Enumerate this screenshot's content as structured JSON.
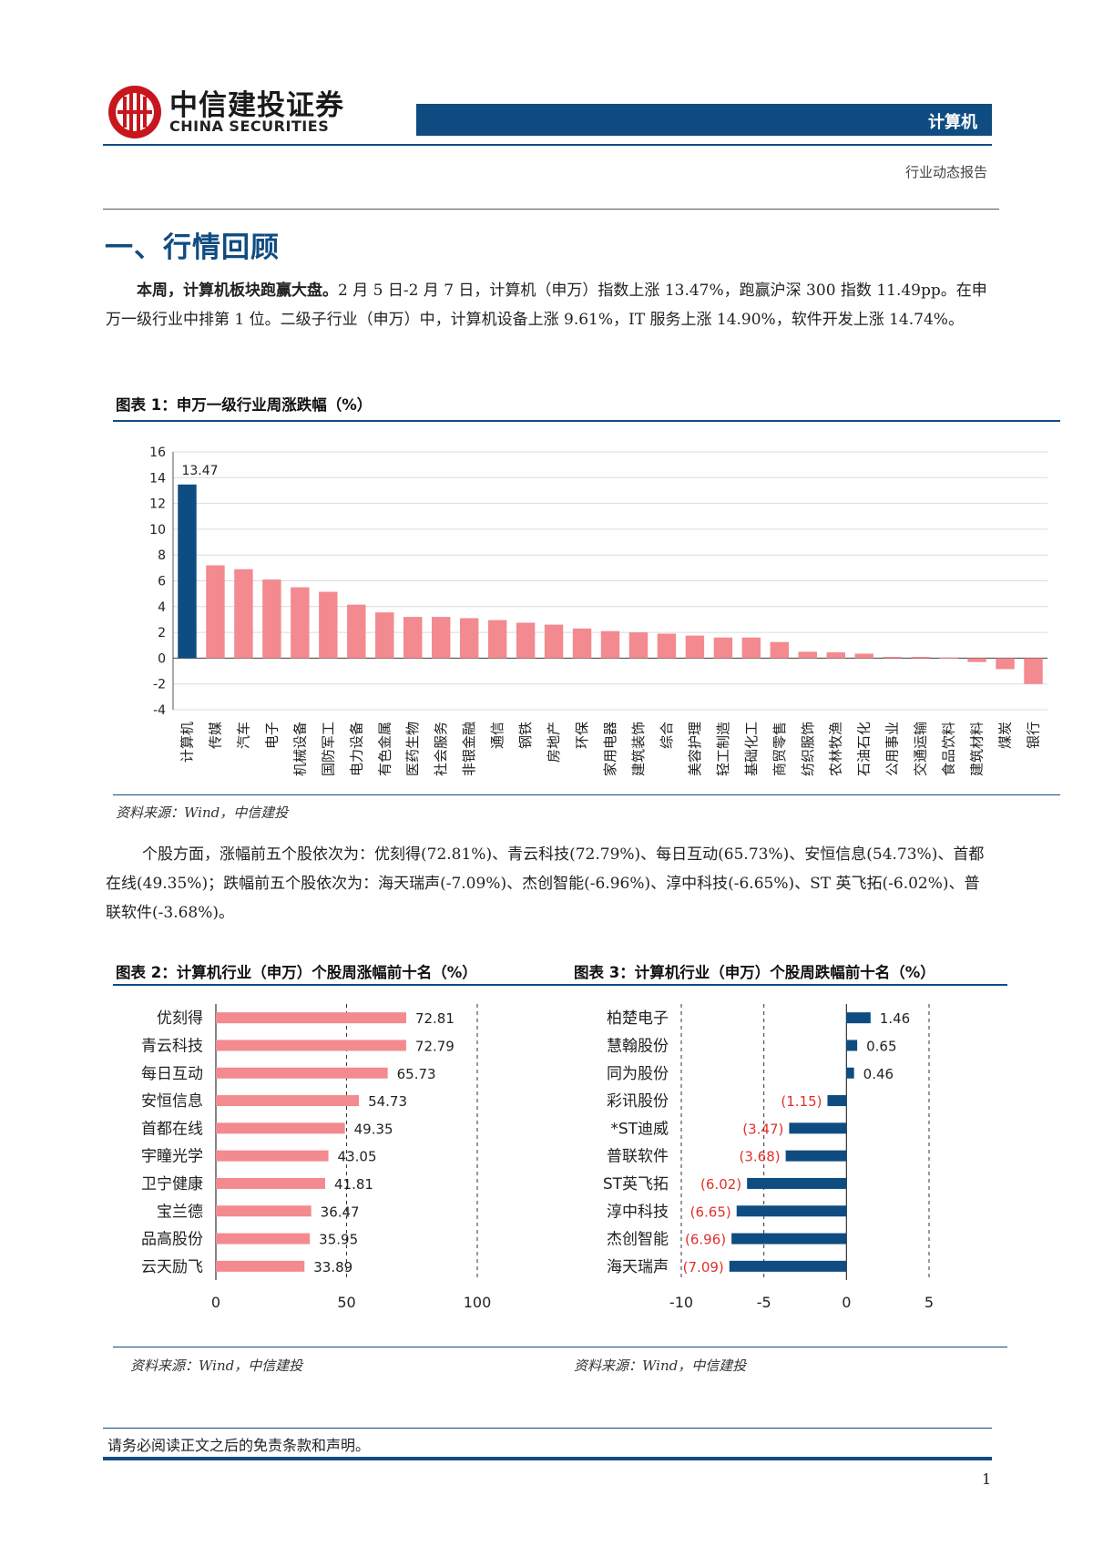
{
  "header": {
    "brand_cn": "中信建投证券",
    "brand_en": "CHINA SECURITIES",
    "section_tag": "计算机",
    "report_type": "行业动态报告"
  },
  "section": {
    "title": "一、行情回顾"
  },
  "para1": {
    "lead": "本周，计算机板块跑赢大盘。",
    "text": "2 月 5 日-2 月 7 日，计算机（申万）指数上涨 13.47%，跑赢沪深 300 指数 11.49pp。在申万一级行业中排第 1 位。二级子行业（申万）中，计算机设备上涨 9.61%，IT 服务上涨 14.90%，软件开发上涨 14.74%。"
  },
  "para2": {
    "text": "个股方面，涨幅前五个股依次为：优刻得(72.81%)、青云科技(72.79%)、每日互动(65.73%)、安恒信息(54.73%)、首都在线(49.35%)；跌幅前五个股依次为：海天瑞声(-7.09%)、杰创智能(-6.96%)、淳中科技(-6.65%)、ST 英飞拓(-6.02%)、普联软件(-3.68%)。"
  },
  "figures": {
    "fig1_title": "图表 1：申万一级行业周涨跌幅（%）",
    "fig2_title": "图表 2：计算机行业（申万）个股周涨幅前十名（%）",
    "fig3_title": "图表 3：计算机行业（申万）个股周跌幅前十名（%）",
    "source": "资料来源：Wind，中信建投"
  },
  "colors": {
    "brand": "#0f4c81",
    "bar_pink": "#f28a8f",
    "neg_label": "#e0312b"
  },
  "chart_data": [
    {
      "type": "bar",
      "categories": [
        "计算机",
        "传媒",
        "汽车",
        "电子",
        "机械设备",
        "国防军工",
        "电力设备",
        "有色金属",
        "医药生物",
        "社会服务",
        "非银金融",
        "通信",
        "钢铁",
        "房地产",
        "环保",
        "家用电器",
        "建筑装饰",
        "综合",
        "美容护理",
        "轻工制造",
        "基础化工",
        "商贸零售",
        "纺织服饰",
        "农林牧渔",
        "石油石化",
        "公用事业",
        "交通运输",
        "食品饮料",
        "建筑材料",
        "煤炭",
        "银行"
      ],
      "values": [
        13.47,
        7.2,
        6.9,
        6.1,
        5.5,
        5.15,
        4.15,
        3.55,
        3.2,
        3.2,
        3.1,
        2.95,
        2.75,
        2.6,
        2.3,
        2.1,
        2.0,
        1.9,
        1.75,
        1.6,
        1.6,
        1.25,
        0.5,
        0.45,
        0.35,
        0.1,
        0.1,
        0.05,
        -0.3,
        -0.85,
        -2.0
      ],
      "data_labels": [
        "13.47"
      ],
      "highlight_index": 0,
      "ylim": [
        -4,
        16
      ],
      "yticks": [
        "-4",
        "-2",
        "0",
        "2",
        "4",
        "6",
        "8",
        "10",
        "12",
        "14",
        "16"
      ],
      "grid": true
    },
    {
      "type": "bar",
      "orientation": "horizontal",
      "categories": [
        "优刻得",
        "青云科技",
        "每日互动",
        "安恒信息",
        "首都在线",
        "宇瞳光学",
        "卫宁健康",
        "宝兰德",
        "品高股份",
        "云天励飞"
      ],
      "values": [
        72.81,
        72.79,
        65.73,
        54.73,
        49.35,
        43.05,
        41.81,
        36.47,
        35.95,
        33.89
      ],
      "labels": [
        "72.81",
        "72.79",
        "65.73",
        "54.73",
        "49.35",
        "43.05",
        "41.81",
        "36.47",
        "35.95",
        "33.89"
      ],
      "xlim": [
        0,
        100
      ],
      "xticks": [
        "0",
        "50",
        "100"
      ]
    },
    {
      "type": "bar",
      "orientation": "horizontal",
      "categories": [
        "柏楚电子",
        "慧翰股份",
        "同为股份",
        "彩讯股份",
        "*ST迪威",
        "普联软件",
        "ST英飞拓",
        "淳中科技",
        "杰创智能",
        "海天瑞声"
      ],
      "values": [
        1.46,
        0.65,
        0.46,
        -1.15,
        -3.47,
        -3.68,
        -6.02,
        -6.65,
        -6.96,
        -7.09
      ],
      "labels": [
        "1.46",
        "0.65",
        "0.46",
        "(1.15)",
        "(3.47)",
        "(3.68)",
        "(6.02)",
        "(6.65)",
        "(6.96)",
        "(7.09)"
      ],
      "xlim": [
        -10,
        5
      ],
      "xticks": [
        "-10",
        "-5",
        "0",
        "5"
      ]
    }
  ],
  "footer": {
    "note": "请务必阅读正文之后的免责条款和声明。",
    "page": "1"
  }
}
